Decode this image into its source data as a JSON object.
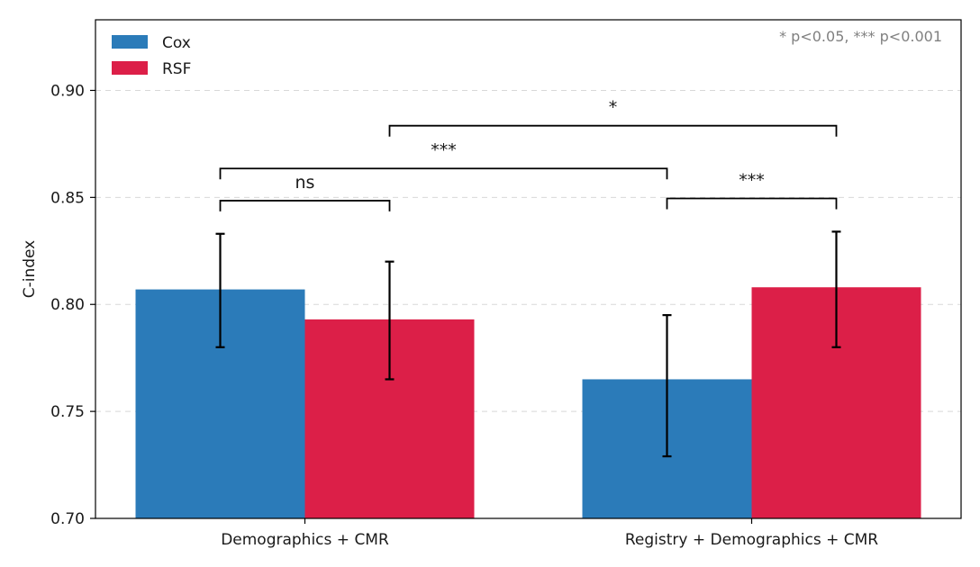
{
  "chart_data": {
    "type": "bar",
    "title": "",
    "xlabel": "",
    "ylabel": "C-index",
    "ylim": [
      0.7,
      0.933
    ],
    "yticks": [
      "0.70",
      "0.75",
      "0.80",
      "0.85",
      "0.90"
    ],
    "grid": "horizontal dashed",
    "legend_position": "top-left",
    "note": "* p<0.05, *** p<0.001",
    "categories": [
      "Demographics + CMR",
      "Registry + Demographics + CMR"
    ],
    "series": [
      {
        "name": "Cox",
        "color": "#2b7bb9",
        "values": [
          0.807,
          0.765
        ],
        "err_low": [
          0.78,
          0.729
        ],
        "err_high": [
          0.833,
          0.795
        ]
      },
      {
        "name": "RSF",
        "color": "#dc1f48",
        "values": [
          0.793,
          0.808
        ],
        "err_low": [
          0.765,
          0.78
        ],
        "err_high": [
          0.82,
          0.834
        ]
      }
    ],
    "significance": [
      {
        "label": "ns",
        "from": {
          "category": 0,
          "series": 0
        },
        "to": {
          "category": 0,
          "series": 1
        },
        "y": 0.8485
      },
      {
        "label": "***",
        "from": {
          "category": 0,
          "series": 0
        },
        "to": {
          "category": 1,
          "series": 0
        },
        "y": 0.8635
      },
      {
        "label": "***",
        "from": {
          "category": 1,
          "series": 0
        },
        "to": {
          "category": 1,
          "series": 1
        },
        "y": 0.8495
      },
      {
        "label": "*",
        "from": {
          "category": 0,
          "series": 1
        },
        "to": {
          "category": 1,
          "series": 1
        },
        "y": 0.8835
      }
    ]
  }
}
